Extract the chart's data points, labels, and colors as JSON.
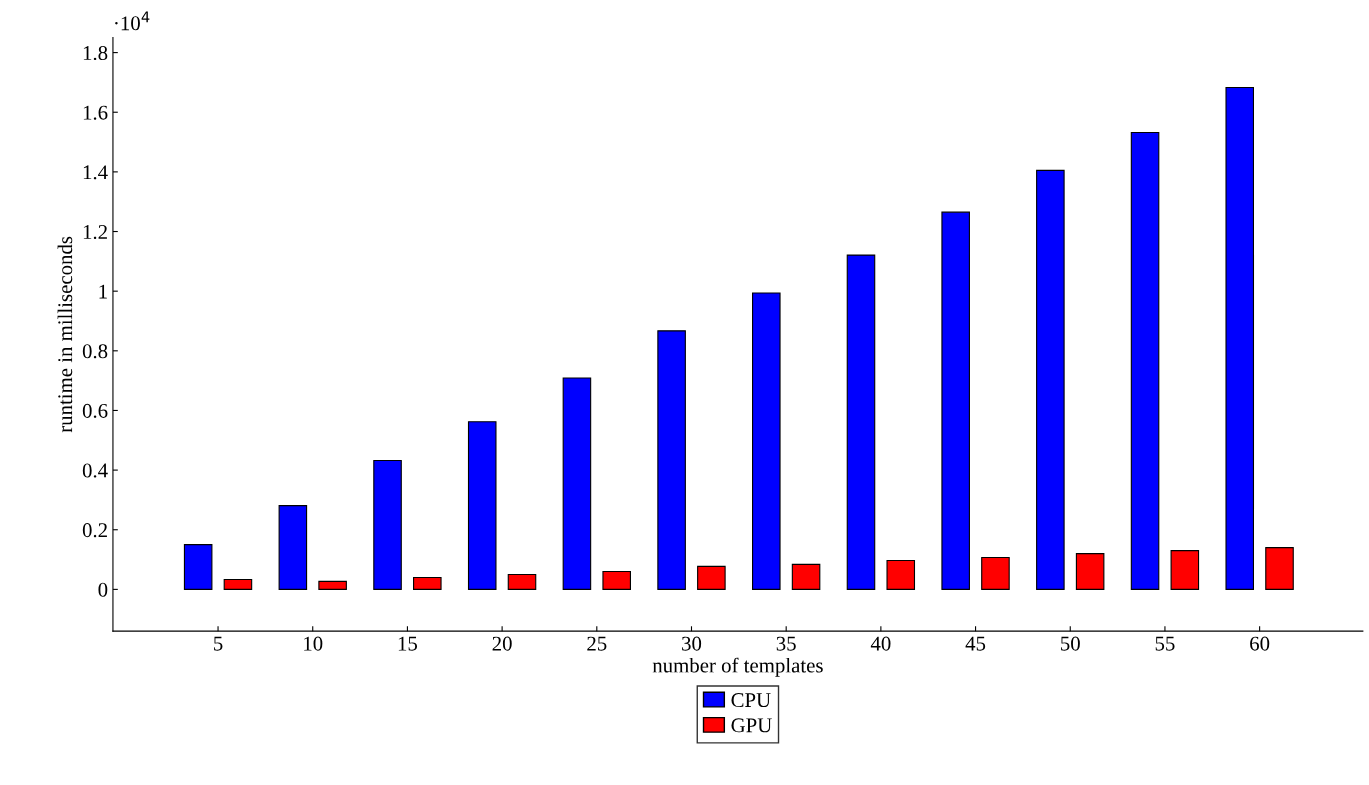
{
  "chart_data": {
    "type": "bar",
    "xlabel": "number of templates",
    "ylabel": "runtime in milliseconds",
    "categories": [
      "5",
      "10",
      "15",
      "20",
      "25",
      "30",
      "35",
      "40",
      "45",
      "50",
      "55",
      "60"
    ],
    "series": [
      {
        "name": "CPU",
        "color": "#0000ff",
        "values": [
          0.15,
          0.281,
          0.432,
          0.562,
          0.709,
          0.867,
          0.994,
          1.121,
          1.265,
          1.405,
          1.532,
          1.683
        ]
      },
      {
        "name": "GPU",
        "color": "#ff0000",
        "values": [
          0.033,
          0.027,
          0.04,
          0.05,
          0.06,
          0.077,
          0.084,
          0.097,
          0.107,
          0.12,
          0.13,
          0.14
        ]
      }
    ],
    "ylim": [
      -0.14,
      1.85
    ],
    "yticks": [
      0,
      0.2,
      0.4,
      0.6,
      0.8,
      1,
      1.2,
      1.4,
      1.6,
      1.8
    ],
    "annotations": [
      "·10$^{4}$"
    ],
    "grid": false,
    "legend": "bottom"
  }
}
